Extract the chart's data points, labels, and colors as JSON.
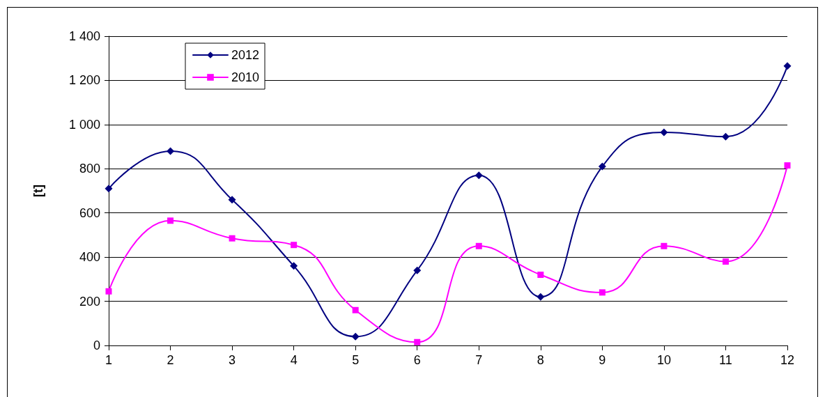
{
  "chart_data": {
    "type": "line",
    "ylabel": "[t]",
    "x": [
      1,
      2,
      3,
      4,
      5,
      6,
      7,
      8,
      9,
      10,
      11,
      12
    ],
    "series": [
      {
        "name": "2012",
        "color": "#000080",
        "marker": "diamond",
        "values": [
          710,
          880,
          660,
          360,
          40,
          340,
          770,
          220,
          810,
          965,
          945,
          1265
        ]
      },
      {
        "name": "2010",
        "color": "#ff00ff",
        "marker": "square",
        "values": [
          245,
          565,
          485,
          455,
          160,
          15,
          450,
          320,
          240,
          450,
          380,
          815
        ]
      }
    ],
    "xlim": [
      1,
      12
    ],
    "xticks": [
      1,
      2,
      3,
      4,
      5,
      6,
      7,
      8,
      9,
      10,
      11,
      12
    ],
    "ylim": [
      0,
      1400
    ],
    "yticks": [
      0,
      200,
      400,
      600,
      800,
      {
        "value": 1000,
        "label": "1 000"
      },
      {
        "value": 1200,
        "label": "1 200"
      },
      {
        "value": 1400,
        "label": "1 400"
      }
    ],
    "grid": "y",
    "legend": "top left",
    "line_style": "solid"
  }
}
